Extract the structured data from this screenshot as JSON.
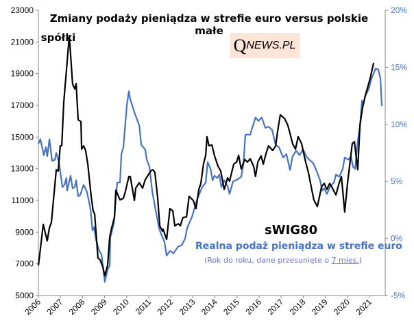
{
  "chart_data": {
    "type": "line",
    "title_line1": "Zmiany podaży pieniądza w strefie euro versus polskie małe",
    "title_line2": "spółki",
    "logo": {
      "q": "Q",
      "rest": "NEWS.PL"
    },
    "x_ticks": [
      "2006",
      "2007",
      "2008",
      "2009",
      "2010",
      "2011",
      "2012",
      "2013",
      "2014",
      "2015",
      "2016",
      "2017",
      "2018",
      "2019",
      "2020",
      "2021"
    ],
    "xlim": [
      2006,
      2021.72
    ],
    "y_left": {
      "ylim": [
        5000,
        23000
      ],
      "ticks": [
        "5000",
        "7000",
        "9000",
        "11000",
        "13000",
        "15000",
        "17000",
        "19000",
        "21000",
        "23000"
      ]
    },
    "y_right": {
      "ylim": [
        -5,
        20
      ],
      "ticks": [
        "-5%",
        "0%",
        "5%",
        "10%",
        "15%",
        "20%"
      ]
    },
    "grid": false,
    "labels": {
      "series1": "sWIG80",
      "series2": "Realna podaż pieniądza w strefie euro",
      "note_prefix": "(Rok do roku, dane przesunięte o ",
      "note_link": "7 mies.",
      "note_suffix": ")"
    },
    "colors": {
      "series1": "#000000",
      "series2": "#4472c4",
      "right_axis": "#4472c4"
    },
    "series": [
      {
        "name": "sWIG80",
        "axis": "left",
        "points": [
          [
            2006.0,
            6900
          ],
          [
            2006.06,
            7550
          ],
          [
            2006.22,
            9490
          ],
          [
            2006.4,
            8450
          ],
          [
            2006.5,
            9270
          ],
          [
            2006.59,
            9620
          ],
          [
            2006.81,
            12940
          ],
          [
            2006.9,
            12860
          ],
          [
            2006.99,
            14450
          ],
          [
            2007.06,
            14450
          ],
          [
            2007.15,
            17170
          ],
          [
            2007.4,
            21400
          ],
          [
            2007.55,
            18340
          ],
          [
            2007.65,
            18040
          ],
          [
            2007.71,
            18380
          ],
          [
            2007.8,
            16090
          ],
          [
            2007.93,
            15970
          ],
          [
            2007.96,
            14240
          ],
          [
            2008.05,
            14450
          ],
          [
            2008.14,
            14150
          ],
          [
            2008.24,
            13290
          ],
          [
            2008.39,
            11260
          ],
          [
            2008.48,
            10350
          ],
          [
            2008.55,
            10140
          ],
          [
            2008.7,
            7370
          ],
          [
            2008.8,
            7240
          ],
          [
            2008.92,
            6810
          ],
          [
            2009.01,
            6250
          ],
          [
            2009.14,
            6940
          ],
          [
            2009.23,
            8670
          ],
          [
            2009.32,
            9270
          ],
          [
            2009.45,
            9960
          ],
          [
            2009.51,
            11650
          ],
          [
            2009.7,
            11040
          ],
          [
            2009.85,
            11130
          ],
          [
            2009.94,
            11560
          ],
          [
            2010.1,
            12510
          ],
          [
            2010.16,
            12510
          ],
          [
            2010.35,
            11000
          ],
          [
            2010.41,
            11780
          ],
          [
            2010.57,
            12120
          ],
          [
            2010.72,
            11780
          ],
          [
            2010.84,
            12300
          ],
          [
            2011.09,
            12860
          ],
          [
            2011.19,
            12940
          ],
          [
            2011.28,
            12770
          ],
          [
            2011.4,
            11220
          ],
          [
            2011.5,
            9400
          ],
          [
            2011.62,
            9060
          ],
          [
            2011.65,
            9190
          ],
          [
            2011.81,
            8540
          ],
          [
            2011.96,
            10480
          ],
          [
            2012.09,
            10350
          ],
          [
            2012.18,
            9400
          ],
          [
            2012.34,
            9530
          ],
          [
            2012.43,
            9400
          ],
          [
            2012.55,
            9920
          ],
          [
            2012.71,
            9960
          ],
          [
            2012.83,
            11260
          ],
          [
            2013.02,
            11000
          ],
          [
            2013.14,
            10480
          ],
          [
            2013.27,
            11690
          ],
          [
            2013.36,
            12080
          ],
          [
            2013.48,
            13290
          ],
          [
            2013.58,
            13850
          ],
          [
            2013.64,
            15020
          ],
          [
            2013.73,
            14450
          ],
          [
            2013.86,
            14500
          ],
          [
            2013.98,
            13810
          ],
          [
            2014.14,
            13160
          ],
          [
            2014.26,
            12860
          ],
          [
            2014.42,
            11690
          ],
          [
            2014.57,
            12430
          ],
          [
            2014.66,
            12210
          ],
          [
            2014.85,
            13290
          ],
          [
            2014.98,
            13420
          ],
          [
            2015.07,
            13850
          ],
          [
            2015.19,
            12990
          ],
          [
            2015.35,
            13590
          ],
          [
            2015.47,
            13420
          ],
          [
            2015.6,
            13630
          ],
          [
            2015.75,
            13160
          ],
          [
            2015.84,
            12510
          ],
          [
            2015.94,
            13420
          ],
          [
            2016.09,
            13810
          ],
          [
            2016.19,
            13290
          ],
          [
            2016.31,
            13940
          ],
          [
            2016.43,
            14450
          ],
          [
            2016.53,
            14280
          ],
          [
            2016.62,
            14150
          ],
          [
            2016.75,
            14450
          ],
          [
            2016.84,
            15360
          ],
          [
            2016.96,
            16400
          ],
          [
            2017.15,
            16180
          ],
          [
            2017.3,
            15750
          ],
          [
            2017.4,
            15230
          ],
          [
            2017.52,
            14580
          ],
          [
            2017.65,
            14240
          ],
          [
            2017.77,
            15020
          ],
          [
            2017.93,
            14580
          ],
          [
            2018.08,
            13590
          ],
          [
            2018.24,
            12730
          ],
          [
            2018.39,
            11650
          ],
          [
            2018.48,
            11040
          ],
          [
            2018.64,
            10610
          ],
          [
            2018.83,
            11860
          ],
          [
            2018.95,
            12080
          ],
          [
            2019.07,
            11690
          ],
          [
            2019.2,
            12080
          ],
          [
            2019.32,
            11780
          ],
          [
            2019.48,
            11350
          ],
          [
            2019.63,
            12120
          ],
          [
            2019.73,
            12510
          ],
          [
            2019.88,
            10270
          ],
          [
            2020.01,
            12120
          ],
          [
            2020.1,
            13160
          ],
          [
            2020.22,
            14580
          ],
          [
            2020.32,
            14710
          ],
          [
            2020.47,
            12940
          ],
          [
            2020.57,
            15750
          ],
          [
            2020.69,
            16870
          ],
          [
            2020.81,
            17610
          ],
          [
            2021.03,
            18690
          ],
          [
            2021.19,
            19680
          ]
        ]
      },
      {
        "name": "Realna podaż pieniądza w strefie euro",
        "axis": "right",
        "points": [
          [
            2006.0,
            8.3
          ],
          [
            2006.09,
            8.7
          ],
          [
            2006.25,
            7.3
          ],
          [
            2006.34,
            8.0
          ],
          [
            2006.4,
            7.2
          ],
          [
            2006.5,
            8.7
          ],
          [
            2006.62,
            6.8
          ],
          [
            2006.75,
            6.9
          ],
          [
            2006.81,
            7.5
          ],
          [
            2006.93,
            6.7
          ],
          [
            2007.09,
            4.5
          ],
          [
            2007.18,
            4.7
          ],
          [
            2007.27,
            5.3
          ],
          [
            2007.3,
            4.2
          ],
          [
            2007.46,
            5.5
          ],
          [
            2007.55,
            4.4
          ],
          [
            2007.65,
            4.5
          ],
          [
            2007.71,
            5.1
          ],
          [
            2007.8,
            3.7
          ],
          [
            2007.89,
            3.8
          ],
          [
            2008.05,
            4.7
          ],
          [
            2008.2,
            4.1
          ],
          [
            2008.36,
            2.6
          ],
          [
            2008.45,
            0.7
          ],
          [
            2008.52,
            1.0
          ],
          [
            2008.61,
            -0.1
          ],
          [
            2008.76,
            -1.1
          ],
          [
            2008.86,
            -1.4
          ],
          [
            2009.01,
            -3.8
          ],
          [
            2009.14,
            -2.7
          ],
          [
            2009.23,
            -2.4
          ],
          [
            2009.26,
            0.1
          ],
          [
            2009.42,
            1.3
          ],
          [
            2009.57,
            4.9
          ],
          [
            2009.7,
            4.9
          ],
          [
            2009.76,
            7.4
          ],
          [
            2009.85,
            8.0
          ],
          [
            2010.01,
            11.7
          ],
          [
            2010.1,
            12.9
          ],
          [
            2010.16,
            12.2
          ],
          [
            2010.38,
            10.9
          ],
          [
            2010.57,
            9.9
          ],
          [
            2010.66,
            8.2
          ],
          [
            2010.84,
            7.8
          ],
          [
            2010.91,
            6.9
          ],
          [
            2011.03,
            6.3
          ],
          [
            2011.16,
            4.1
          ],
          [
            2011.31,
            2.5
          ],
          [
            2011.47,
            0.9
          ],
          [
            2011.56,
            0.4
          ],
          [
            2011.71,
            -0.3
          ],
          [
            2011.81,
            -1.5
          ],
          [
            2011.96,
            -1.1
          ],
          [
            2012.12,
            -1.3
          ],
          [
            2012.34,
            -0.7
          ],
          [
            2012.49,
            -0.6
          ],
          [
            2012.65,
            0.0
          ],
          [
            2012.74,
            0.9
          ],
          [
            2012.96,
            1.9
          ],
          [
            2013.17,
            3.3
          ],
          [
            2013.27,
            3.8
          ],
          [
            2013.42,
            4.5
          ],
          [
            2013.58,
            4.9
          ],
          [
            2013.67,
            6.7
          ],
          [
            2013.8,
            6.1
          ],
          [
            2013.89,
            5.1
          ],
          [
            2013.98,
            5.5
          ],
          [
            2014.11,
            5.3
          ],
          [
            2014.2,
            5.6
          ],
          [
            2014.29,
            4.5
          ],
          [
            2014.42,
            5.1
          ],
          [
            2014.57,
            4.6
          ],
          [
            2014.66,
            3.9
          ],
          [
            2014.82,
            5.0
          ],
          [
            2015.04,
            5.2
          ],
          [
            2015.19,
            5.4
          ],
          [
            2015.29,
            6.5
          ],
          [
            2015.38,
            9.1
          ],
          [
            2015.6,
            9.1
          ],
          [
            2015.69,
            9.7
          ],
          [
            2015.84,
            10.6
          ],
          [
            2015.97,
            10.3
          ],
          [
            2016.12,
            10.6
          ],
          [
            2016.28,
            9.7
          ],
          [
            2016.43,
            9.8
          ],
          [
            2016.59,
            9.5
          ],
          [
            2016.75,
            8.2
          ],
          [
            2016.9,
            8.0
          ],
          [
            2017.09,
            7.1
          ],
          [
            2017.24,
            7.4
          ],
          [
            2017.4,
            6.0
          ],
          [
            2017.52,
            7.2
          ],
          [
            2017.68,
            7.7
          ],
          [
            2017.83,
            7.3
          ],
          [
            2017.99,
            7.8
          ],
          [
            2018.17,
            7.1
          ],
          [
            2018.45,
            6.6
          ],
          [
            2018.61,
            5.9
          ],
          [
            2018.76,
            5.1
          ],
          [
            2018.86,
            4.2
          ],
          [
            2018.95,
            4.4
          ],
          [
            2019.07,
            3.9
          ],
          [
            2019.23,
            4.6
          ],
          [
            2019.39,
            4.9
          ],
          [
            2019.48,
            5.6
          ],
          [
            2019.63,
            5.4
          ],
          [
            2019.79,
            6.1
          ],
          [
            2019.88,
            7.1
          ],
          [
            2020.04,
            6.9
          ],
          [
            2020.16,
            7.2
          ],
          [
            2020.25,
            6.3
          ],
          [
            2020.35,
            6.1
          ],
          [
            2020.47,
            8.5
          ],
          [
            2020.57,
            9.9
          ],
          [
            2020.66,
            12.1
          ],
          [
            2020.72,
            11.7
          ],
          [
            2020.81,
            12.5
          ],
          [
            2020.97,
            13.1
          ],
          [
            2021.09,
            14.0
          ],
          [
            2021.28,
            14.9
          ],
          [
            2021.4,
            14.8
          ],
          [
            2021.5,
            14.0
          ],
          [
            2021.56,
            11.6
          ]
        ]
      }
    ]
  }
}
